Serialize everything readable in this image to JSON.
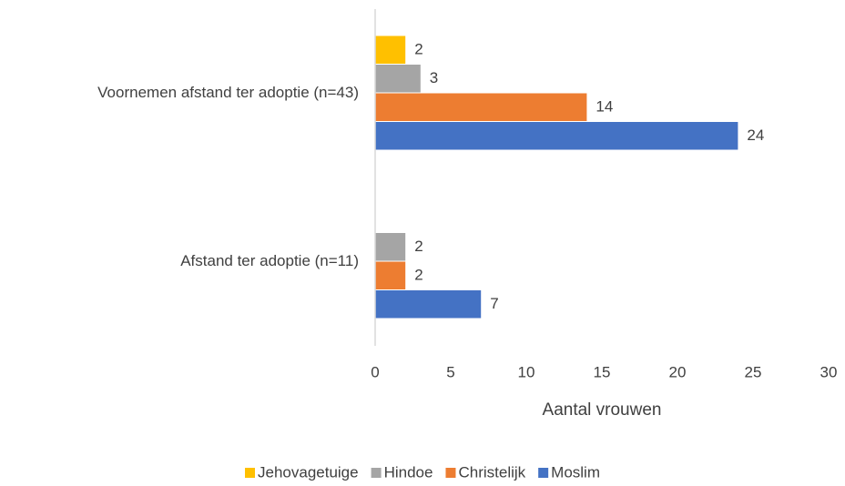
{
  "chart_data": {
    "type": "bar",
    "orientation": "horizontal",
    "categories": [
      "Voornemen afstand ter adoptie (n=43)",
      "Afstand ter adoptie (n=11)"
    ],
    "series": [
      {
        "name": "Jehovagetuige",
        "color": "#ffc000",
        "values": [
          2,
          null
        ]
      },
      {
        "name": "Hindoe",
        "color": "#a5a5a5",
        "values": [
          3,
          2
        ]
      },
      {
        "name": "Christelijk",
        "color": "#ed7d31",
        "values": [
          14,
          2
        ]
      },
      {
        "name": "Moslim",
        "color": "#4472c4",
        "values": [
          24,
          7
        ]
      }
    ],
    "x_label": "Aantal vrouwen",
    "xlim": [
      0,
      30
    ],
    "xticks": [
      0,
      5,
      10,
      15,
      20,
      25,
      30
    ],
    "grid": false,
    "legend": "bottom"
  }
}
